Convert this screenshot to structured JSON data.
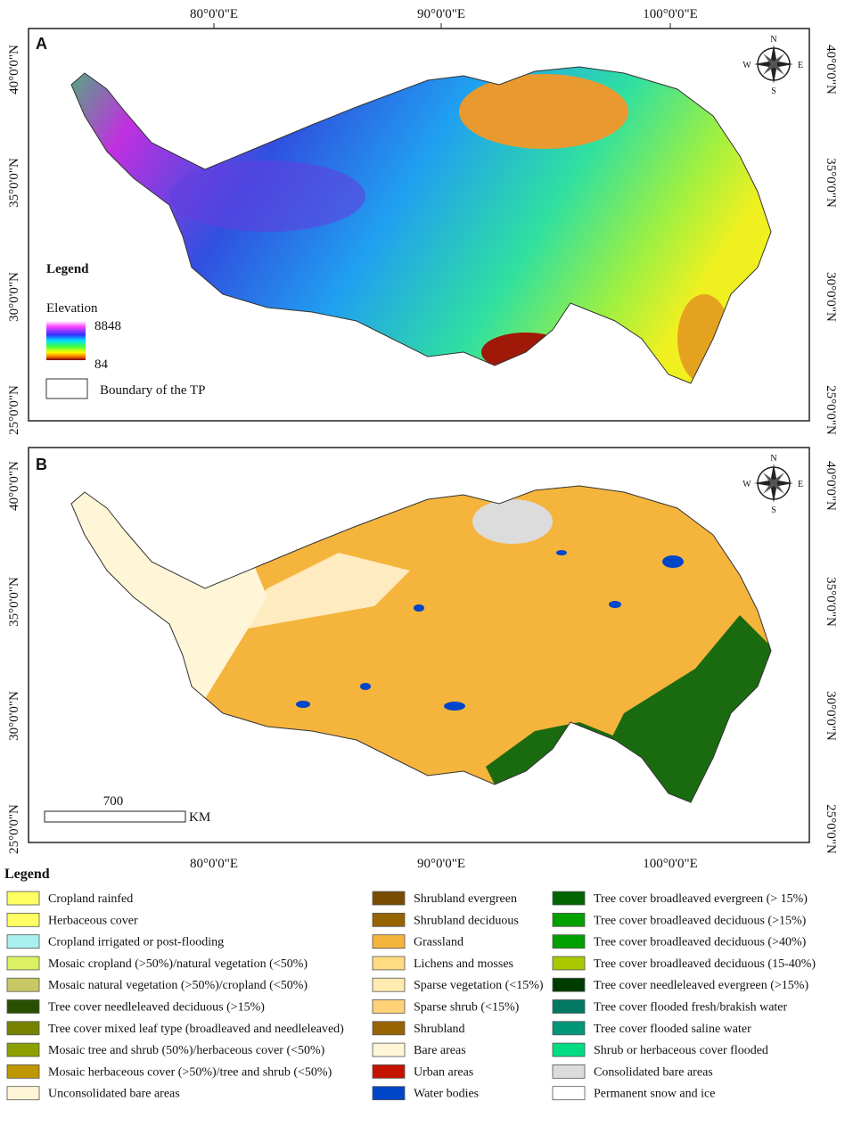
{
  "compass_labels": [
    "N",
    "E",
    "S",
    "W"
  ],
  "lon_labels": [
    "80°0'0\"E",
    "90°0'0\"E",
    "100°0'0\"E"
  ],
  "lat_labels": [
    "40°0'0\"N",
    "35°0'0\"N",
    "30°0'0\"N",
    "25°0'0\"N"
  ],
  "panel_a": {
    "label": "A",
    "legend_title": "Legend",
    "elevation_title": "Elevation",
    "elevation_max": "8848",
    "elevation_min": "84",
    "boundary_label": "Boundary of the TP"
  },
  "panel_b": {
    "label": "B",
    "scale_value": "700",
    "scale_unit": "KM"
  },
  "legend": {
    "title": "Legend",
    "columns": [
      [
        {
          "label": "Cropland rainfed",
          "color": "#ffff64"
        },
        {
          "label": "Herbaceous cover",
          "color": "#ffff64"
        },
        {
          "label": "Cropland irrigated or post-flooding",
          "color": "#aaf0f0"
        },
        {
          "label": "Mosaic cropland (>50%)/natural vegetation (<50%)",
          "color": "#dcf064"
        },
        {
          "label": "Mosaic natural vegetation (>50%)/cropland (<50%)",
          "color": "#c8c864"
        },
        {
          "label": "Tree cover needleleaved deciduous (>15%)",
          "color": "#285000"
        },
        {
          "label": "Tree cover mixed leaf type (broadleaved and needleleaved)",
          "color": "#788200"
        },
        {
          "label": "Mosaic tree and shrub (50%)/herbaceous cover (<50%)",
          "color": "#8ca000"
        },
        {
          "label": "Mosaic herbaceous cover (>50%)/tree and shrub (<50%)",
          "color": "#be9600"
        },
        {
          "label": "Unconsolidated bare areas",
          "color": "#fff5d7"
        }
      ],
      [
        {
          "label": "Shrubland evergreen",
          "color": "#784b00"
        },
        {
          "label": "Shrubland deciduous",
          "color": "#966400"
        },
        {
          "label": "Grassland",
          "color": "#f5b43c"
        },
        {
          "label": "Lichens and mosses",
          "color": "#ffdc82"
        },
        {
          "label": "Sparse vegetation (<15%)",
          "color": "#ffebaf"
        },
        {
          "label": "Sparse shrub (<15%)",
          "color": "#ffd278"
        },
        {
          "label": "Shrubland",
          "color": "#966400"
        },
        {
          "label": "Bare areas",
          "color": "#fff5d7"
        },
        {
          "label": "Urban areas",
          "color": "#c31400"
        },
        {
          "label": "Water bodies",
          "color": "#0046c8"
        }
      ],
      [
        {
          "label": "Tree cover broadleaved evergreen (> 15%)",
          "color": "#006400"
        },
        {
          "label": "Tree cover broadleaved deciduous (>15%)",
          "color": "#00a000"
        },
        {
          "label": "Tree cover broadleaved deciduous (>40%)",
          "color": "#00a000"
        },
        {
          "label": "Tree cover broadleaved deciduous (15-40%)",
          "color": "#aac800"
        },
        {
          "label": "Tree cover needleleaved evergreen (>15%)",
          "color": "#003c00"
        },
        {
          "label": "Tree cover flooded fresh/brakish water",
          "color": "#007864"
        },
        {
          "label": "Tree cover flooded saline water",
          "color": "#009678"
        },
        {
          "label": "Shrub or herbaceous cover flooded",
          "color": "#00dc82"
        },
        {
          "label": "Consolidated bare areas",
          "color": "#dcdcdc"
        },
        {
          "label": "Permanent snow and ice",
          "color": "#ffffff"
        }
      ]
    ]
  }
}
